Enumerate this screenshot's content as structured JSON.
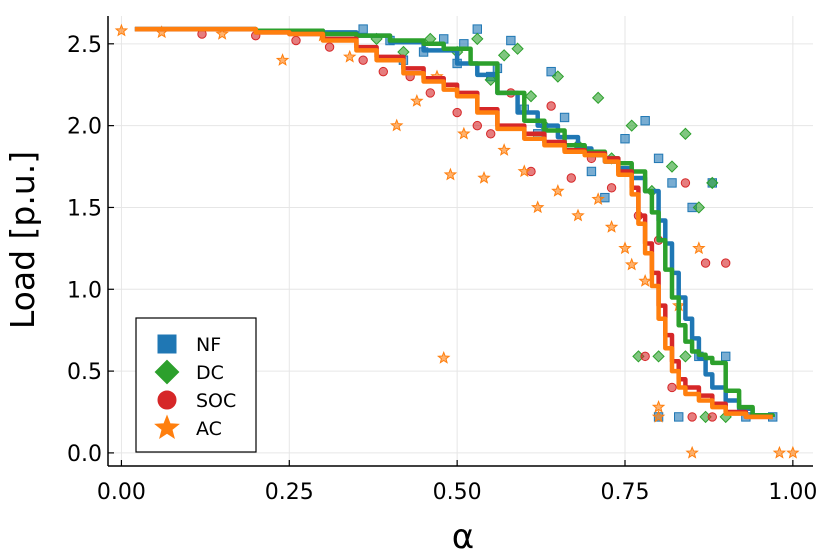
{
  "chart_data": {
    "type": "line",
    "title": "",
    "xlabel": "α",
    "ylabel": "Load [p.u.]",
    "xlim": [
      -0.02,
      1.03
    ],
    "ylim": [
      -0.08,
      2.67
    ],
    "grid": true,
    "legend_position": "bottom-left",
    "xticks": [
      {
        "value": 0.0,
        "label": "0.00"
      },
      {
        "value": 0.25,
        "label": "0.25"
      },
      {
        "value": 0.5,
        "label": "0.50"
      },
      {
        "value": 0.75,
        "label": "0.75"
      },
      {
        "value": 1.0,
        "label": "1.00"
      }
    ],
    "yticks": [
      {
        "value": 0.0,
        "label": "0.0"
      },
      {
        "value": 0.5,
        "label": "0.5"
      },
      {
        "value": 1.0,
        "label": "1.0"
      },
      {
        "value": 1.5,
        "label": "1.5"
      },
      {
        "value": 2.0,
        "label": "2.0"
      },
      {
        "value": 2.5,
        "label": "2.5"
      }
    ],
    "series": [
      {
        "name": "NF",
        "color": "#1f77b4",
        "marker": "square",
        "line": {
          "x": [
            0.02,
            0.1,
            0.2,
            0.3,
            0.35,
            0.4,
            0.45,
            0.5,
            0.53,
            0.56,
            0.59,
            0.62,
            0.65,
            0.68,
            0.7,
            0.72,
            0.74,
            0.76,
            0.78,
            0.8,
            0.81,
            0.82,
            0.83,
            0.84,
            0.85,
            0.86,
            0.87,
            0.88,
            0.9,
            0.92,
            0.94,
            0.97
          ],
          "y": [
            2.59,
            2.59,
            2.58,
            2.57,
            2.55,
            2.51,
            2.46,
            2.38,
            2.31,
            2.2,
            2.08,
            2.0,
            1.93,
            1.86,
            1.82,
            1.78,
            1.74,
            1.68,
            1.6,
            1.42,
            1.28,
            1.1,
            0.95,
            0.82,
            0.7,
            0.58,
            0.48,
            0.4,
            0.32,
            0.27,
            0.23,
            0.22
          ]
        },
        "scatter": {
          "x": [
            0.36,
            0.4,
            0.42,
            0.45,
            0.48,
            0.5,
            0.51,
            0.53,
            0.55,
            0.56,
            0.58,
            0.6,
            0.62,
            0.64,
            0.66,
            0.7,
            0.72,
            0.75,
            0.78,
            0.8,
            0.82,
            0.85,
            0.88,
            0.8,
            0.83,
            0.86,
            0.9,
            0.93,
            0.97
          ],
          "y": [
            2.59,
            2.52,
            2.4,
            2.45,
            2.53,
            2.38,
            2.5,
            2.59,
            2.3,
            2.35,
            2.52,
            2.1,
            1.95,
            2.33,
            2.05,
            1.72,
            1.56,
            1.92,
            2.03,
            1.8,
            1.65,
            1.5,
            1.65,
            0.22,
            0.22,
            0.59,
            0.59,
            0.22,
            0.22
          ]
        }
      },
      {
        "name": "DC",
        "color": "#2ca02c",
        "marker": "diamond",
        "line": {
          "x": [
            0.02,
            0.1,
            0.2,
            0.3,
            0.35,
            0.4,
            0.45,
            0.48,
            0.52,
            0.56,
            0.6,
            0.63,
            0.66,
            0.69,
            0.72,
            0.74,
            0.76,
            0.78,
            0.79,
            0.8,
            0.81,
            0.82,
            0.83,
            0.84,
            0.85,
            0.86,
            0.87,
            0.88,
            0.9,
            0.92,
            0.94,
            0.97
          ],
          "y": [
            2.59,
            2.59,
            2.58,
            2.56,
            2.55,
            2.52,
            2.5,
            2.47,
            2.38,
            2.2,
            2.03,
            1.97,
            1.88,
            1.84,
            1.8,
            1.77,
            1.72,
            1.6,
            1.47,
            1.3,
            1.12,
            0.95,
            0.78,
            0.68,
            0.62,
            0.6,
            0.58,
            0.55,
            0.38,
            0.28,
            0.23,
            0.22
          ]
        },
        "scatter": {
          "x": [
            0.38,
            0.42,
            0.46,
            0.5,
            0.53,
            0.55,
            0.57,
            0.59,
            0.61,
            0.63,
            0.65,
            0.68,
            0.71,
            0.73,
            0.76,
            0.79,
            0.82,
            0.84,
            0.86,
            0.88,
            0.77,
            0.8,
            0.84,
            0.87,
            0.9
          ],
          "y": [
            2.53,
            2.45,
            2.53,
            2.45,
            2.53,
            2.28,
            2.43,
            2.47,
            2.18,
            2.0,
            2.3,
            1.88,
            2.17,
            1.8,
            2.0,
            1.6,
            1.75,
            1.95,
            1.5,
            1.65,
            0.59,
            0.59,
            0.59,
            0.22,
            0.22
          ]
        }
      },
      {
        "name": "SOC",
        "color": "#d62728",
        "marker": "circle",
        "line": {
          "x": [
            0.02,
            0.1,
            0.2,
            0.25,
            0.3,
            0.35,
            0.38,
            0.42,
            0.45,
            0.48,
            0.5,
            0.53,
            0.56,
            0.6,
            0.63,
            0.66,
            0.69,
            0.72,
            0.74,
            0.76,
            0.77,
            0.78,
            0.79,
            0.8,
            0.81,
            0.82,
            0.83,
            0.84,
            0.86,
            0.88,
            0.9,
            0.93,
            0.97
          ],
          "y": [
            2.59,
            2.59,
            2.57,
            2.56,
            2.53,
            2.48,
            2.42,
            2.35,
            2.29,
            2.25,
            2.2,
            2.1,
            2.0,
            1.95,
            1.9,
            1.85,
            1.83,
            1.8,
            1.72,
            1.62,
            1.45,
            1.28,
            1.1,
            0.9,
            0.72,
            0.56,
            0.45,
            0.4,
            0.35,
            0.3,
            0.25,
            0.22,
            0.22
          ]
        },
        "scatter": {
          "x": [
            0.12,
            0.2,
            0.26,
            0.31,
            0.36,
            0.39,
            0.43,
            0.46,
            0.5,
            0.53,
            0.55,
            0.58,
            0.61,
            0.64,
            0.67,
            0.7,
            0.73,
            0.77,
            0.8,
            0.84,
            0.87,
            0.9,
            0.78,
            0.82,
            0.85,
            0.88
          ],
          "y": [
            2.56,
            2.55,
            2.52,
            2.48,
            2.4,
            2.33,
            2.3,
            2.2,
            2.08,
            2.0,
            1.95,
            2.2,
            1.72,
            2.12,
            1.68,
            1.8,
            1.62,
            1.45,
            1.3,
            1.65,
            1.16,
            1.16,
            0.59,
            0.4,
            0.22,
            0.22
          ]
        }
      },
      {
        "name": "AC",
        "color": "#ff7f0e",
        "marker": "star",
        "line": {
          "x": [
            0.02,
            0.1,
            0.2,
            0.25,
            0.3,
            0.35,
            0.38,
            0.42,
            0.45,
            0.48,
            0.5,
            0.53,
            0.56,
            0.6,
            0.63,
            0.66,
            0.69,
            0.72,
            0.74,
            0.76,
            0.77,
            0.78,
            0.79,
            0.8,
            0.81,
            0.82,
            0.83,
            0.84,
            0.86,
            0.88,
            0.9,
            0.93,
            0.97
          ],
          "y": [
            2.59,
            2.59,
            2.57,
            2.56,
            2.52,
            2.46,
            2.4,
            2.32,
            2.27,
            2.22,
            2.18,
            2.08,
            1.98,
            1.92,
            1.88,
            1.84,
            1.82,
            1.78,
            1.7,
            1.58,
            1.4,
            1.22,
            1.02,
            0.82,
            0.64,
            0.5,
            0.4,
            0.36,
            0.32,
            0.28,
            0.24,
            0.22,
            0.22
          ]
        },
        "scatter": {
          "x": [
            0.0,
            0.06,
            0.15,
            0.24,
            0.3,
            0.34,
            0.41,
            0.44,
            0.47,
            0.49,
            0.51,
            0.54,
            0.57,
            0.6,
            0.62,
            0.65,
            0.68,
            0.71,
            0.73,
            0.75,
            0.76,
            0.78,
            0.8,
            0.83,
            0.86,
            0.48,
            0.8,
            0.85,
            0.98,
            1.0
          ],
          "y": [
            2.58,
            2.57,
            2.56,
            2.4,
            2.55,
            2.42,
            2.0,
            2.15,
            2.3,
            1.7,
            1.95,
            1.68,
            1.85,
            1.72,
            1.5,
            1.6,
            1.45,
            1.55,
            1.38,
            1.25,
            1.15,
            1.05,
            0.28,
            0.9,
            1.25,
            0.58,
            0.22,
            0.0,
            0.0,
            0.0
          ]
        }
      }
    ]
  }
}
